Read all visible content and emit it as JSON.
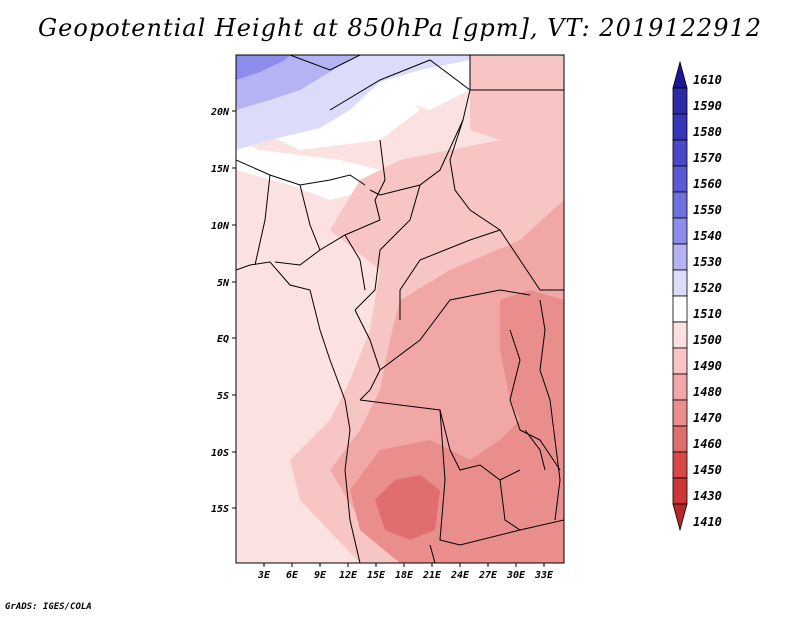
{
  "title": "Geopotential Height at 850hPa [gpm], VT: 2019122912",
  "credit": "GrADS: IGES/COLA",
  "map": {
    "lat_labels": [
      "20N",
      "15N",
      "10N",
      "5N",
      "EQ",
      "5S",
      "10S",
      "15S"
    ],
    "lon_labels": [
      "3E",
      "6E",
      "9E",
      "12E",
      "15E",
      "18E",
      "21E",
      "24E",
      "27E",
      "30E",
      "33E"
    ]
  },
  "colorbar": {
    "levels": [
      {
        "value": "1610",
        "color": "#1e1696"
      },
      {
        "value": "1590",
        "color": "#2b2ba6"
      },
      {
        "value": "1580",
        "color": "#3636b8"
      },
      {
        "value": "1570",
        "color": "#4848c8"
      },
      {
        "value": "1560",
        "color": "#5a5ad6"
      },
      {
        "value": "1550",
        "color": "#7070e0"
      },
      {
        "value": "1540",
        "color": "#8c8cec"
      },
      {
        "value": "1530",
        "color": "#b4b4f4"
      },
      {
        "value": "1520",
        "color": "#dcdcfa"
      },
      {
        "value": "1510",
        "color": "#ffffff"
      },
      {
        "value": "1500",
        "color": "#fce1e1"
      },
      {
        "value": "1490",
        "color": "#f8c5c5"
      },
      {
        "value": "1480",
        "color": "#f2a7a7"
      },
      {
        "value": "1470",
        "color": "#e98d8d"
      },
      {
        "value": "1460",
        "color": "#e06e6e"
      },
      {
        "value": "1450",
        "color": "#d84848"
      },
      {
        "value": "1430",
        "color": "#cd3636"
      },
      {
        "value": "1410",
        "color": "#b42828"
      }
    ]
  }
}
